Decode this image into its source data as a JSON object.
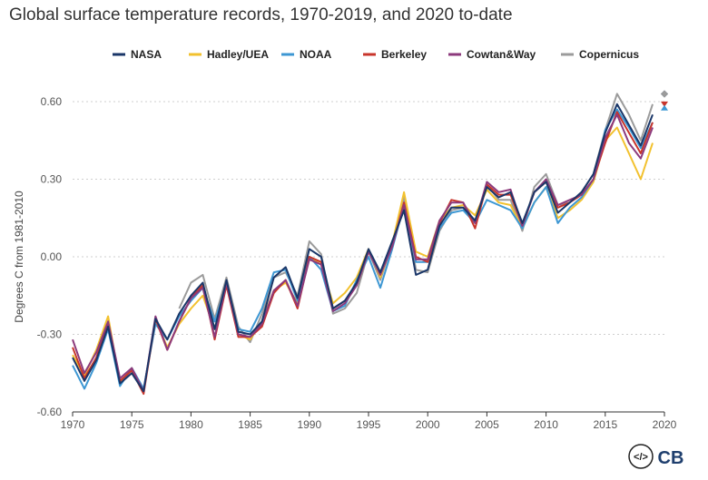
{
  "chart_data": {
    "type": "line",
    "title": "Global surface temperature records, 1970-2019, and 2020 to-date",
    "xlabel": "",
    "ylabel": "Degrees C from 1981-2010",
    "xlim": [
      1970,
      2020
    ],
    "ylim": [
      -0.6,
      0.6
    ],
    "x_ticks": [
      1970,
      1975,
      1980,
      1985,
      1990,
      1995,
      2000,
      2005,
      2010,
      2015,
      2020
    ],
    "y_ticks": [
      -0.6,
      -0.3,
      0.0,
      0.3,
      0.6
    ],
    "y_tick_labels": [
      "-0.60",
      "-0.30",
      "0.00",
      "0.30",
      "0.60"
    ],
    "grid": "horizontal dotted",
    "legend_position": "top-center",
    "x": [
      1970,
      1971,
      1972,
      1973,
      1974,
      1975,
      1976,
      1977,
      1978,
      1979,
      1980,
      1981,
      1982,
      1983,
      1984,
      1985,
      1986,
      1987,
      1988,
      1989,
      1990,
      1991,
      1992,
      1993,
      1994,
      1995,
      1996,
      1997,
      1998,
      1999,
      2000,
      2001,
      2002,
      2003,
      2004,
      2005,
      2006,
      2007,
      2008,
      2009,
      2010,
      2011,
      2012,
      2013,
      2014,
      2015,
      2016,
      2017,
      2018,
      2019
    ],
    "series": [
      {
        "name": "NASA",
        "color": "#1a3668",
        "values": [
          -0.39,
          -0.48,
          -0.4,
          -0.27,
          -0.49,
          -0.45,
          -0.52,
          -0.24,
          -0.32,
          -0.22,
          -0.15,
          -0.1,
          -0.28,
          -0.09,
          -0.29,
          -0.3,
          -0.25,
          -0.08,
          -0.04,
          -0.16,
          0.03,
          0.0,
          -0.2,
          -0.17,
          -0.1,
          0.03,
          -0.06,
          0.06,
          0.18,
          -0.07,
          -0.05,
          0.12,
          0.19,
          0.19,
          0.14,
          0.27,
          0.23,
          0.25,
          0.13,
          0.25,
          0.29,
          0.17,
          0.21,
          0.25,
          0.32,
          0.48,
          0.59,
          0.51,
          0.43,
          0.55
        ]
      },
      {
        "name": "Hadley/UEA",
        "color": "#f2c12e",
        "values": [
          -0.38,
          -0.46,
          -0.36,
          -0.23,
          -0.49,
          -0.43,
          -0.52,
          -0.24,
          -0.35,
          -0.26,
          -0.2,
          -0.15,
          -0.28,
          -0.1,
          -0.3,
          -0.32,
          -0.25,
          -0.13,
          -0.1,
          -0.18,
          0.0,
          -0.03,
          -0.18,
          -0.14,
          -0.08,
          0.03,
          -0.08,
          0.05,
          0.25,
          0.02,
          0.0,
          0.14,
          0.19,
          0.2,
          0.16,
          0.26,
          0.21,
          0.2,
          0.11,
          0.21,
          0.27,
          0.15,
          0.18,
          0.22,
          0.29,
          0.45,
          0.5,
          0.4,
          0.3,
          0.44
        ]
      },
      {
        "name": "NOAA",
        "color": "#3d97d3",
        "values": [
          -0.42,
          -0.51,
          -0.41,
          -0.28,
          -0.5,
          -0.43,
          -0.51,
          -0.26,
          -0.32,
          -0.23,
          -0.17,
          -0.12,
          -0.25,
          -0.11,
          -0.28,
          -0.29,
          -0.2,
          -0.06,
          -0.05,
          -0.17,
          0.0,
          -0.05,
          -0.21,
          -0.19,
          -0.09,
          0.0,
          -0.12,
          0.03,
          0.2,
          -0.02,
          -0.02,
          0.11,
          0.17,
          0.18,
          0.13,
          0.22,
          0.2,
          0.18,
          0.11,
          0.21,
          0.27,
          0.13,
          0.19,
          0.23,
          0.3,
          0.49,
          0.57,
          0.5,
          0.42,
          0.52
        ]
      },
      {
        "name": "Berkeley",
        "color": "#c8352b",
        "values": [
          -0.35,
          -0.47,
          -0.39,
          -0.26,
          -0.48,
          -0.44,
          -0.53,
          -0.24,
          -0.36,
          -0.25,
          -0.16,
          -0.11,
          -0.32,
          -0.11,
          -0.31,
          -0.31,
          -0.27,
          -0.14,
          -0.09,
          -0.2,
          0.0,
          -0.02,
          -0.2,
          -0.17,
          -0.11,
          0.02,
          -0.06,
          0.04,
          0.21,
          0.0,
          -0.02,
          0.13,
          0.22,
          0.21,
          0.11,
          0.28,
          0.24,
          0.24,
          0.12,
          0.25,
          0.29,
          0.19,
          0.21,
          0.24,
          0.3,
          0.44,
          0.56,
          0.48,
          0.4,
          0.52
        ]
      },
      {
        "name": "Cowtan&Way",
        "color": "#8c3a7c",
        "values": [
          -0.32,
          -0.45,
          -0.37,
          -0.25,
          -0.47,
          -0.43,
          -0.52,
          -0.23,
          -0.36,
          -0.25,
          -0.16,
          -0.12,
          -0.31,
          -0.1,
          -0.3,
          -0.31,
          -0.26,
          -0.13,
          -0.09,
          -0.19,
          -0.01,
          -0.03,
          -0.21,
          -0.18,
          -0.11,
          0.02,
          -0.07,
          0.04,
          0.2,
          -0.01,
          -0.01,
          0.14,
          0.21,
          0.21,
          0.13,
          0.29,
          0.25,
          0.26,
          0.12,
          0.25,
          0.3,
          0.2,
          0.22,
          0.24,
          0.3,
          0.46,
          0.55,
          0.44,
          0.38,
          0.5
        ]
      },
      {
        "name": "Copernicus",
        "color": "#9b9b9b",
        "values": [
          null,
          null,
          null,
          null,
          null,
          null,
          null,
          null,
          null,
          -0.2,
          -0.1,
          -0.07,
          -0.24,
          -0.08,
          -0.27,
          -0.33,
          -0.22,
          -0.08,
          -0.06,
          -0.15,
          0.06,
          0.01,
          -0.22,
          -0.2,
          -0.14,
          0.02,
          -0.09,
          0.05,
          0.23,
          -0.05,
          -0.06,
          0.1,
          0.18,
          0.19,
          0.14,
          0.28,
          0.22,
          0.22,
          0.1,
          0.27,
          0.32,
          0.2,
          0.21,
          0.25,
          0.32,
          0.49,
          0.63,
          0.55,
          0.45,
          0.59
        ]
      }
    ],
    "markers_2020": [
      {
        "name": "NASA",
        "value": 0.63,
        "color": "#1a3668",
        "shape": "diamond"
      },
      {
        "name": "Copernicus",
        "value": 0.63,
        "color": "#9b9b9b",
        "shape": "diamond"
      },
      {
        "name": "Berkeley",
        "value": 0.59,
        "color": "#c8352b",
        "shape": "triangle-down"
      },
      {
        "name": "NOAA",
        "value": 0.58,
        "color": "#3d97d3",
        "shape": "triangle-up"
      }
    ]
  },
  "branding": {
    "embed_icon": "code-embed-icon",
    "embed_symbol": "</>",
    "logo_text": "CB"
  }
}
